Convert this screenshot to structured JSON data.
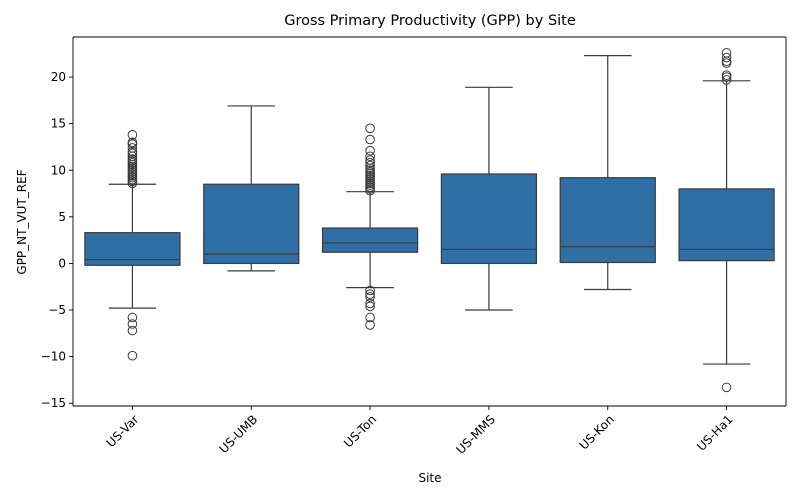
{
  "chart_data": {
    "type": "box",
    "title": "Gross Primary Productivity (GPP) by Site",
    "xlabel": "Site",
    "ylabel": "GPP_NT_VUT_REF",
    "ylim": [
      -15.3,
      24.3
    ],
    "yticks": [
      -15,
      -10,
      -5,
      0,
      5,
      10,
      15,
      20
    ],
    "box_color": "#2f6fa6",
    "line_color": "#3a3a3a",
    "grid": false,
    "categories": [
      "US-Var",
      "US-UMB",
      "US-Ton",
      "US-MMS",
      "US-Kon",
      "US-Ha1"
    ],
    "boxes": [
      {
        "site": "US-Var",
        "whisker_low": -4.8,
        "q1": -0.2,
        "median": 0.4,
        "q3": 3.3,
        "whisker_high": 8.5,
        "outliers_low": [
          -5.8,
          -6.5,
          -7.2,
          -9.9
        ],
        "outliers_high": [
          8.6,
          8.8,
          9.0,
          9.2,
          9.4,
          9.6,
          9.8,
          10.0,
          10.2,
          10.4,
          10.6,
          10.8,
          11.0,
          11.2,
          11.5,
          11.8,
          12.0,
          12.4,
          12.8,
          13.0,
          13.8
        ]
      },
      {
        "site": "US-UMB",
        "whisker_low": -0.8,
        "q1": 0.0,
        "median": 1.0,
        "q3": 8.5,
        "whisker_high": 16.9,
        "outliers_low": [],
        "outliers_high": []
      },
      {
        "site": "US-Ton",
        "whisker_low": -2.6,
        "q1": 1.2,
        "median": 2.2,
        "q3": 3.8,
        "whisker_high": 7.7,
        "outliers_low": [
          -2.9,
          -3.3,
          -3.6,
          -4.3,
          -4.6,
          -5.8,
          -6.6
        ],
        "outliers_high": [
          7.8,
          8.0,
          8.2,
          8.4,
          8.6,
          8.8,
          9.0,
          9.2,
          9.4,
          9.6,
          9.8,
          10.0,
          10.2,
          10.5,
          10.8,
          11.1,
          11.5,
          12.1,
          13.3,
          14.5
        ]
      },
      {
        "site": "US-MMS",
        "whisker_low": -5.0,
        "q1": 0.0,
        "median": 1.5,
        "q3": 9.6,
        "whisker_high": 18.9,
        "outliers_low": [],
        "outliers_high": []
      },
      {
        "site": "US-Kon",
        "whisker_low": -2.8,
        "q1": 0.1,
        "median": 1.8,
        "q3": 9.2,
        "whisker_high": 22.3,
        "outliers_low": [],
        "outliers_high": []
      },
      {
        "site": "US-Ha1",
        "whisker_low": -10.8,
        "q1": 0.3,
        "median": 1.5,
        "q3": 8.0,
        "whisker_high": 19.6,
        "outliers_low": [
          -13.3
        ],
        "outliers_high": [
          19.7,
          20.0,
          20.2,
          21.5,
          21.7,
          22.1,
          22.6
        ]
      }
    ]
  }
}
